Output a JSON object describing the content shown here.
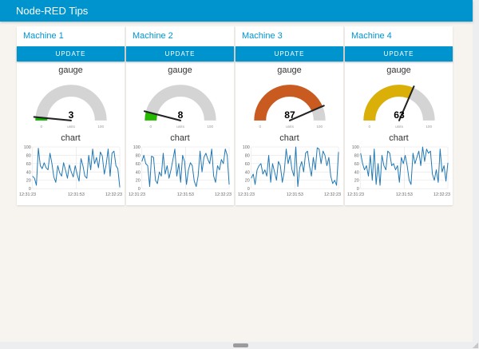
{
  "header": {
    "title": "Node-RED Tips"
  },
  "colors": {
    "accent": "#0094ce",
    "page_bg": "#f7f4f0",
    "card_bg": "#ffffff",
    "gauge_track": "#d4d4d4",
    "chart_line": "#1f77b4",
    "grid": "#e3e3e3",
    "tick_text": "#666666",
    "needle": "#222222"
  },
  "machines": [
    {
      "title": "Machine 1",
      "button_label": "UPDATE",
      "gauge": {
        "title": "gauge",
        "value": 3,
        "min": 0,
        "max": 100,
        "units": "units",
        "color": "#0EB800"
      },
      "chart": {
        "type": "line",
        "title": "chart",
        "ylim": [
          0,
          100
        ],
        "yticks": [
          0,
          20,
          40,
          60,
          80,
          100
        ],
        "xticks": [
          "12:31:23",
          "12:31:53",
          "12:32:23"
        ],
        "values": [
          30,
          25,
          8,
          97,
          55,
          48,
          62,
          50,
          45,
          85,
          60,
          28,
          15,
          55,
          38,
          30,
          62,
          45,
          25,
          57,
          40,
          28,
          55,
          35,
          18,
          72,
          55,
          30,
          25,
          80,
          45,
          95,
          60,
          75,
          50,
          88,
          78,
          35,
          58,
          95,
          30,
          85,
          90,
          55,
          48,
          3
        ]
      }
    },
    {
      "title": "Machine 2",
      "button_label": "UPDATE",
      "gauge": {
        "title": "gauge",
        "value": 8,
        "min": 0,
        "max": 100,
        "units": "units",
        "color": "#25BA00"
      },
      "chart": {
        "type": "line",
        "title": "chart",
        "ylim": [
          0,
          100
        ],
        "yticks": [
          0,
          20,
          40,
          60,
          80,
          100
        ],
        "xticks": [
          "12:31:23",
          "12:31:53",
          "12:32:23"
        ],
        "values": [
          65,
          80,
          60,
          55,
          5,
          78,
          75,
          20,
          12,
          40,
          30,
          85,
          35,
          55,
          25,
          45,
          70,
          95,
          30,
          60,
          15,
          80,
          65,
          10,
          45,
          62,
          55,
          18,
          5,
          30,
          90,
          40,
          75,
          85,
          70,
          60,
          95,
          30,
          15,
          55,
          45,
          70,
          60,
          95,
          80,
          10
        ]
      }
    },
    {
      "title": "Machine 3",
      "button_label": "UPDATE",
      "gauge": {
        "title": "gauge",
        "value": 87,
        "min": 0,
        "max": 100,
        "units": "units",
        "color": "#C95A20"
      },
      "chart": {
        "type": "line",
        "title": "chart",
        "ylim": [
          0,
          100
        ],
        "yticks": [
          0,
          20,
          40,
          60,
          80,
          100
        ],
        "xticks": [
          "12:31:23",
          "12:31:53",
          "12:32:23"
        ],
        "values": [
          25,
          35,
          10,
          45,
          55,
          60,
          35,
          45,
          30,
          80,
          15,
          60,
          40,
          20,
          65,
          55,
          15,
          40,
          95,
          60,
          80,
          45,
          30,
          100,
          5,
          50,
          65,
          40,
          85,
          90,
          55,
          30,
          75,
          45,
          98,
          95,
          60,
          90,
          80,
          55,
          75,
          30,
          12,
          20,
          8,
          88
        ]
      }
    },
    {
      "title": "Machine 4",
      "button_label": "UPDATE",
      "gauge": {
        "title": "gauge",
        "value": 63,
        "min": 0,
        "max": 100,
        "units": "units",
        "color": "#D9AF08"
      },
      "chart": {
        "type": "line",
        "title": "chart",
        "ylim": [
          0,
          100
        ],
        "yticks": [
          0,
          20,
          40,
          60,
          80,
          100
        ],
        "xticks": [
          "12:31:23",
          "12:31:53",
          "12:32:23"
        ],
        "values": [
          85,
          60,
          45,
          55,
          30,
          80,
          20,
          95,
          10,
          60,
          8,
          80,
          55,
          45,
          90,
          85,
          55,
          60,
          45,
          55,
          15,
          75,
          60,
          80,
          55,
          20,
          10,
          85,
          60,
          75,
          90,
          55,
          100,
          65,
          95,
          85,
          90,
          35,
          20,
          45,
          15,
          95,
          40,
          55,
          18,
          62
        ]
      }
    }
  ]
}
